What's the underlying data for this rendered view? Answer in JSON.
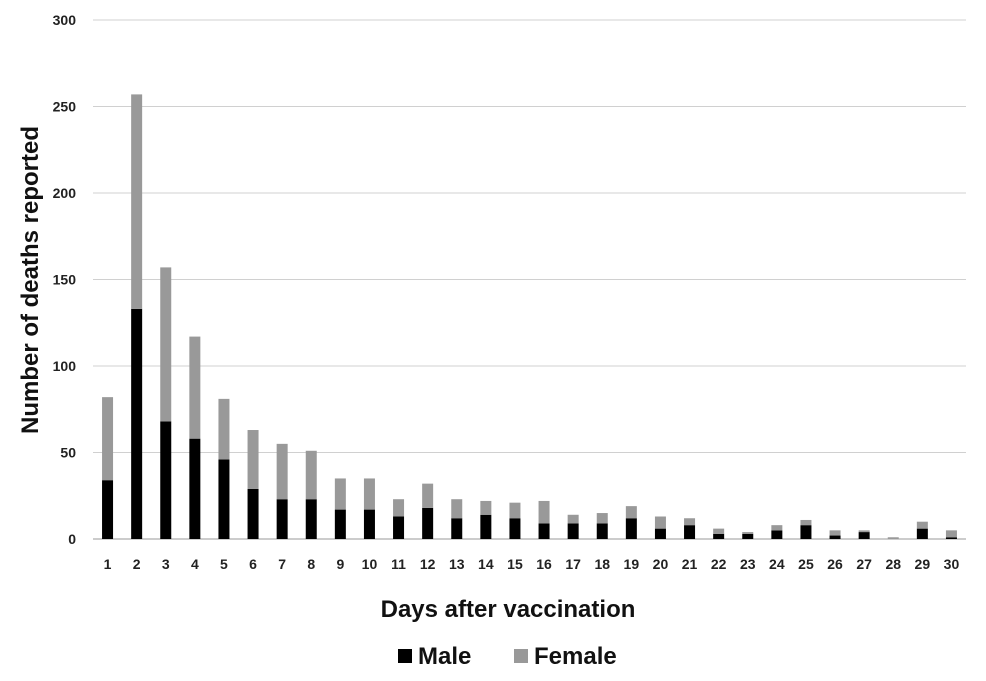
{
  "chart_data": {
    "type": "bar",
    "stacked": true,
    "title": "",
    "xlabel": "Days after vaccination",
    "ylabel": "Number of deaths reported",
    "ylim": [
      0,
      300
    ],
    "yticks": [
      "0",
      "50",
      "100",
      "150",
      "200",
      "250",
      "300"
    ],
    "grid": true,
    "legend_position": "bottom",
    "categories": [
      "1",
      "2",
      "3",
      "4",
      "5",
      "6",
      "7",
      "8",
      "9",
      "10",
      "11",
      "12",
      "13",
      "14",
      "15",
      "16",
      "17",
      "18",
      "19",
      "20",
      "21",
      "22",
      "23",
      "24",
      "25",
      "26",
      "27",
      "28",
      "29",
      "30"
    ],
    "series": [
      {
        "name": "Male",
        "color": "#000000",
        "values": [
          34,
          133,
          68,
          58,
          46,
          29,
          23,
          23,
          17,
          17,
          13,
          18,
          12,
          14,
          12,
          9,
          9,
          9,
          12,
          6,
          8,
          3,
          3,
          5,
          8,
          2,
          4,
          0,
          6,
          1
        ]
      },
      {
        "name": "Female",
        "color": "#999999",
        "values": [
          48,
          124,
          89,
          59,
          35,
          34,
          32,
          28,
          18,
          18,
          10,
          14,
          11,
          8,
          9,
          13,
          5,
          6,
          7,
          7,
          4,
          3,
          1,
          3,
          3,
          3,
          1,
          1,
          4,
          4
        ]
      }
    ]
  }
}
